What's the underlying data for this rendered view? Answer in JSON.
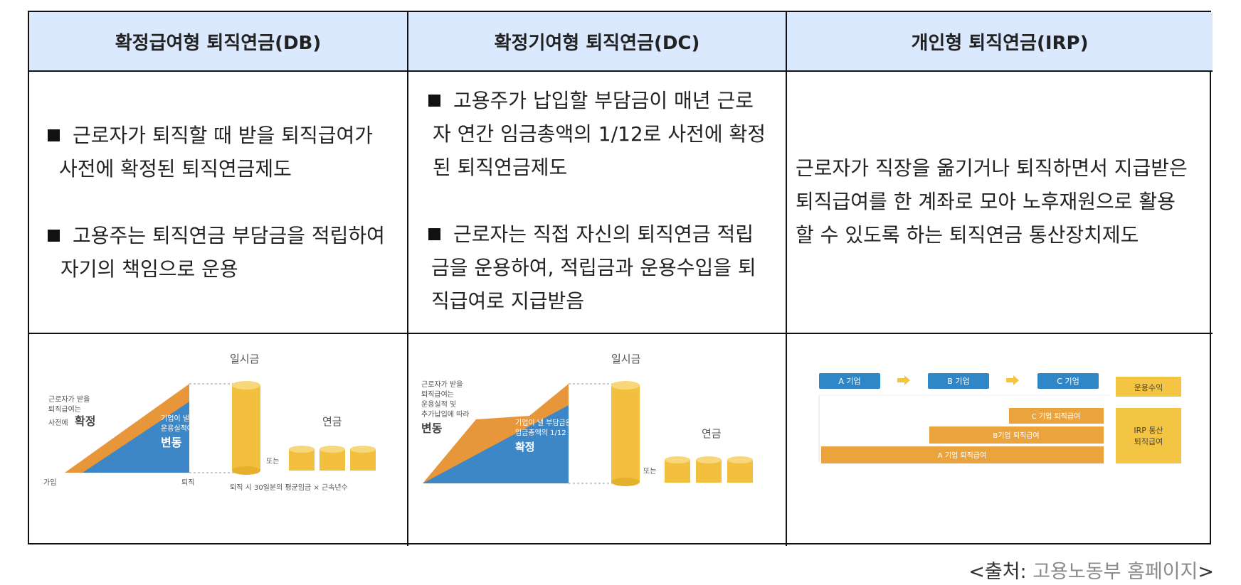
{
  "headers": {
    "db": "확정급여형 퇴직연금(DB)",
    "dc": "확정기여형 퇴직연금(DC)",
    "irp": "개인형 퇴직연금(IRP)"
  },
  "db_desc": {
    "b1_line1": "근로자가 퇴직할 때 받을 퇴직급여가",
    "b1_line2": "사전에 확정된 퇴직연금제도",
    "b2_line1": "고용주는 퇴직연금 부담금을 적립하여",
    "b2_line2": "자기의 책임으로 운용"
  },
  "dc_desc": {
    "b1_line1": "고용주가 납입할 부담금이 매년 근로",
    "b1_line2": "자 연간 임금총액의 1/12로 사전에 확정",
    "b1_line3": "된 퇴직연금제도",
    "b2_line1": "근로자는 직접 자신의 퇴직연금 적립",
    "b2_line2": "금을 운용하여, 적립금과 운용수입을 퇴",
    "b2_line3": "직급여로 지급받음"
  },
  "irp_desc": {
    "line1": "근로자가 직장을 옮기거나 퇴직하면서 지급받은",
    "line2": "퇴직급여를 한 계좌로 모아 노후재원으로 활용",
    "line3": "할 수 있도록 하는 퇴직연금 통산장치제도"
  },
  "db_img": {
    "lump_sum": "일시금",
    "pension": "연금",
    "or": "또는",
    "left_note_1": "근로자가 받을",
    "left_note_2": "퇴직급여는",
    "left_note_3": "사전에",
    "fixed": "확정",
    "blue_note_1": "기업이 낼 부담금은",
    "blue_note_2": "운용실적에 따라",
    "variable": "변동",
    "join": "가입",
    "retire": "퇴직",
    "formula": "퇴직 시 30일분의 평균임금 × 근속년수"
  },
  "dc_img": {
    "lump_sum": "일시금",
    "pension": "연금",
    "or": "또는",
    "left_note_1": "근로자가 받을",
    "left_note_2": "퇴직급여는",
    "left_note_3": "운용실적 및",
    "left_note_4": "추가납입에 따라",
    "variable": "변동",
    "blue_note_1": "기업이 낼 부담금은",
    "blue_note_2": "임금총액의 1/12",
    "fixed": "확정"
  },
  "irp_img": {
    "company_a": "A 기업",
    "company_b": "B 기업",
    "company_c": "C 기업",
    "return": "운용수익",
    "bar_c": "C 기업 퇴직급여",
    "bar_b": "B기업 퇴직급여",
    "bar_a": "A 기업 퇴직급여",
    "irp_box_1": "IRP 통산",
    "irp_box_2": "퇴직급여"
  },
  "source": {
    "prefix": "<출처: ",
    "name": "고용노동부 홈페이지",
    "suffix": ">"
  },
  "colors": {
    "header_bg": "#dbe9ff",
    "orange": "#e8963a",
    "blue": "#3e87c7",
    "gold": "#f2c03e",
    "irp_blue": "#2f87c8",
    "irp_orange": "#eba33e",
    "irp_gold": "#f4c542"
  }
}
